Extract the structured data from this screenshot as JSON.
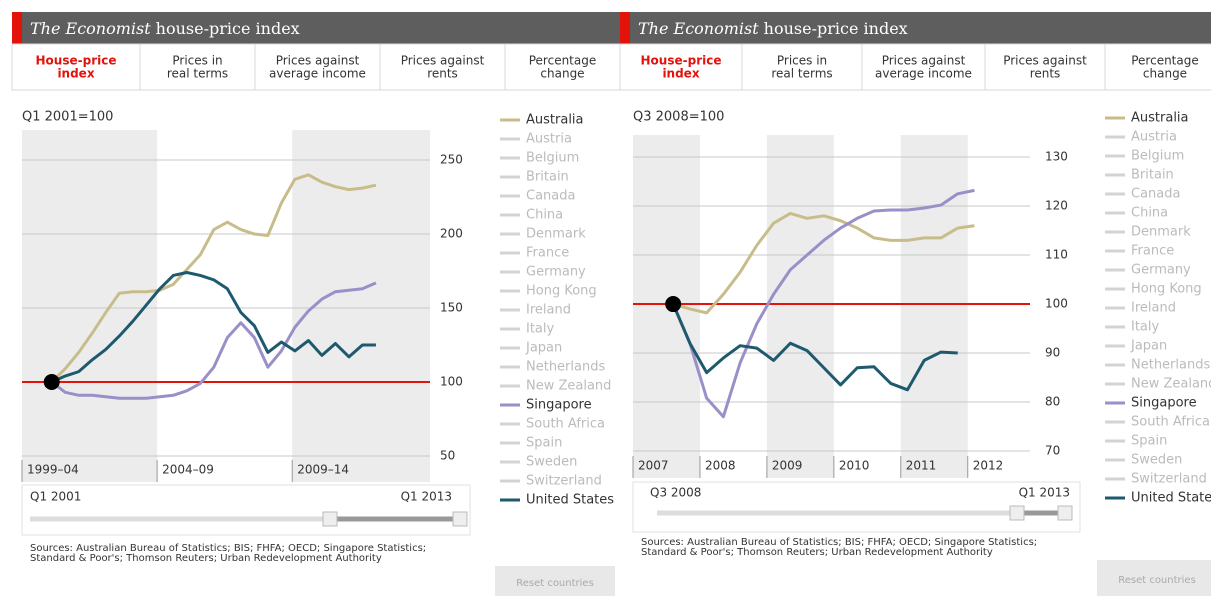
{
  "panels": [
    {
      "header": {
        "title_italic": "The Economist",
        "title": "house-price index"
      },
      "tabs": [
        [
          "House-price",
          "index"
        ],
        [
          "Prices in",
          "real terms"
        ],
        [
          "Prices against",
          "average income"
        ],
        [
          "Prices against",
          "rents"
        ],
        [
          "Percentage",
          "change"
        ]
      ],
      "slider": {
        "start": "Q1 2001",
        "end": "Q1 2013"
      },
      "sources": "Sources: Australian Bureau of Statistics; BIS; FHFA; OECD; Singapore Statistics; Standard & Poor's; Thomson Reuters; Urban Redevelopment Authority",
      "reset": "Reset countries"
    },
    {
      "header": {
        "title_italic": "The Economist",
        "title": "house-price index"
      },
      "tabs": [
        [
          "House-price",
          "index"
        ],
        [
          "Prices in",
          "real terms"
        ],
        [
          "Prices against",
          "average income"
        ],
        [
          "Prices against",
          "rents"
        ],
        [
          "Percentage",
          "change"
        ]
      ],
      "slider": {
        "start": "Q3 2008",
        "end": "Q1 2013"
      },
      "sources": "Sources: Australian Bureau of Statistics; BIS; FHFA; OECD; Singapore Statistics; Standard & Poor's; Thomson Reuters; Urban Redevelopment Authority",
      "reset": "Reset countries"
    }
  ],
  "chart_data": [
    {
      "type": "line",
      "subtitle": "Q1 2001=100",
      "x": [
        2001,
        2001.5,
        2002,
        2002.5,
        2003,
        2003.5,
        2004,
        2004.5,
        2005,
        2005.5,
        2006,
        2006.5,
        2007,
        2007.5,
        2008,
        2008.5,
        2009,
        2009.5,
        2010,
        2010.5,
        2011,
        2011.5,
        2012,
        2012.5,
        2013
      ],
      "xlim": [
        1999.9,
        2015
      ],
      "xticks": [
        {
          "value": 1999.9,
          "label": "1999–04"
        },
        {
          "value": 2004.9,
          "label": "2004–09"
        },
        {
          "value": 2009.9,
          "label": "2009–14"
        }
      ],
      "ylim": [
        32.4,
        270.3
      ],
      "yticks": [
        50,
        100,
        150,
        200,
        250
      ],
      "grid": true,
      "bands": true,
      "baseline": 100,
      "baseline_color": "#e3120b",
      "series": [
        {
          "name": "Australia",
          "color": "#c8bd8a",
          "values": [
            100,
            109,
            120,
            133,
            147,
            160,
            161,
            161,
            162,
            166,
            176,
            186,
            203,
            208,
            203,
            200,
            199,
            221,
            237,
            240,
            235,
            232,
            230,
            231,
            233
          ]
        },
        {
          "name": "Austria",
          "color": "#d3d3d3"
        },
        {
          "name": "Belgium",
          "color": "#d3d3d3"
        },
        {
          "name": "Britain",
          "color": "#d3d3d3"
        },
        {
          "name": "Canada",
          "color": "#d3d3d3"
        },
        {
          "name": "China",
          "color": "#d3d3d3"
        },
        {
          "name": "Denmark",
          "color": "#d3d3d3"
        },
        {
          "name": "France",
          "color": "#d3d3d3"
        },
        {
          "name": "Germany",
          "color": "#d3d3d3"
        },
        {
          "name": "Hong Kong",
          "color": "#d3d3d3"
        },
        {
          "name": "Ireland",
          "color": "#d3d3d3"
        },
        {
          "name": "Italy",
          "color": "#d3d3d3"
        },
        {
          "name": "Japan",
          "color": "#d3d3d3"
        },
        {
          "name": "Netherlands",
          "color": "#d3d3d3"
        },
        {
          "name": "New Zealand",
          "color": "#d3d3d3"
        },
        {
          "name": "Singapore",
          "color": "#9a8fc8",
          "values": [
            100,
            93,
            91,
            91,
            90,
            89,
            89,
            89,
            90,
            91,
            94,
            99,
            110,
            130,
            140,
            130,
            110,
            121,
            137,
            148,
            156,
            161,
            162,
            163,
            167
          ]
        },
        {
          "name": "South Africa",
          "color": "#d3d3d3"
        },
        {
          "name": "Spain",
          "color": "#d3d3d3"
        },
        {
          "name": "Sweden",
          "color": "#d3d3d3"
        },
        {
          "name": "Switzerland",
          "color": "#d3d3d3"
        },
        {
          "name": "United States",
          "color": "#1e5a6e",
          "values": [
            100,
            104,
            107,
            115,
            122,
            131,
            141,
            152,
            163,
            172,
            174,
            172,
            169,
            163,
            147,
            138,
            120,
            127,
            121,
            128,
            118,
            126,
            117,
            125,
            125
          ]
        }
      ]
    },
    {
      "type": "line",
      "subtitle": "Q3 2008=100",
      "x": [
        2007.6,
        2007.85,
        2008.1,
        2008.35,
        2008.6,
        2008.85,
        2009.1,
        2009.35,
        2009.6,
        2009.85,
        2010.1,
        2010.35,
        2010.6,
        2010.85,
        2011.1,
        2011.35,
        2011.6,
        2011.85,
        2012.1
      ],
      "xlim": [
        2007,
        2012.93
      ],
      "xticks": [
        2007,
        2008,
        2009,
        2010,
        2011,
        2012
      ],
      "ylim": [
        64.5,
        134.5
      ],
      "yticks": [
        70,
        80,
        90,
        100,
        110,
        120,
        130
      ],
      "grid": true,
      "bands": true,
      "baseline": 100,
      "baseline_color": "#e3120b",
      "series": [
        {
          "name": "Australia",
          "color": "#c8bd8a",
          "values": [
            100,
            99,
            98.2,
            102,
            106.5,
            112,
            116.5,
            118.5,
            117.5,
            118,
            117,
            115.5,
            113.5,
            113,
            113,
            113.5,
            113.5,
            115.5,
            116
          ]
        },
        {
          "name": "Austria",
          "color": "#d3d3d3"
        },
        {
          "name": "Belgium",
          "color": "#d3d3d3"
        },
        {
          "name": "Britain",
          "color": "#d3d3d3"
        },
        {
          "name": "Canada",
          "color": "#d3d3d3"
        },
        {
          "name": "China",
          "color": "#d3d3d3"
        },
        {
          "name": "Denmark",
          "color": "#d3d3d3"
        },
        {
          "name": "France",
          "color": "#d3d3d3"
        },
        {
          "name": "Germany",
          "color": "#d3d3d3"
        },
        {
          "name": "Hong Kong",
          "color": "#d3d3d3"
        },
        {
          "name": "Ireland",
          "color": "#d3d3d3"
        },
        {
          "name": "Italy",
          "color": "#d3d3d3"
        },
        {
          "name": "Japan",
          "color": "#d3d3d3"
        },
        {
          "name": "Netherlands",
          "color": "#d3d3d3"
        },
        {
          "name": "New Zealand",
          "color": "#d3d3d3"
        },
        {
          "name": "Singapore",
          "color": "#9a8fc8",
          "values": [
            100,
            92,
            80.8,
            77,
            88,
            96,
            102,
            107,
            110,
            113,
            115.5,
            117.5,
            119,
            119.2,
            119.2,
            119.6,
            120.2,
            122.5,
            123.2
          ]
        },
        {
          "name": "South Africa",
          "color": "#d3d3d3"
        },
        {
          "name": "Spain",
          "color": "#d3d3d3"
        },
        {
          "name": "Sweden",
          "color": "#d3d3d3"
        },
        {
          "name": "Switzerland",
          "color": "#d3d3d3"
        },
        {
          "name": "United States",
          "color": "#1e5a6e",
          "values": [
            100,
            92,
            86,
            89,
            91.5,
            91,
            88.5,
            92,
            90.5,
            87,
            83.5,
            87,
            87.2,
            83.8,
            82.5,
            88.5,
            90.2,
            90,
            null
          ]
        }
      ]
    }
  ]
}
